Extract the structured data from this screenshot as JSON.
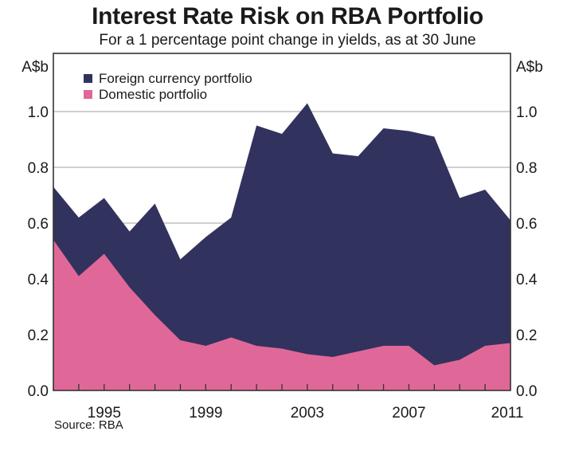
{
  "colors": {
    "foreign": "#32325e",
    "domestic": "#e06899",
    "grid": "#b3b3b3",
    "frame": "#333333"
  },
  "chart_data": {
    "type": "area",
    "stacked": false,
    "title": "Interest Rate Risk on RBA Portfolio",
    "subtitle": "For a 1 percentage point change in yields, as at 30 June",
    "ylabel_left": "A$b",
    "ylabel_right": "A$b",
    "xlabel": "",
    "x": [
      1993,
      1994,
      1995,
      1996,
      1997,
      1998,
      1999,
      2000,
      2001,
      2002,
      2003,
      2004,
      2005,
      2006,
      2007,
      2008,
      2009,
      2010,
      2011
    ],
    "xlim": [
      1993,
      2011
    ],
    "ylim": [
      0,
      1.0
    ],
    "x_tick_labels": [
      "1995",
      "1999",
      "2003",
      "2007",
      "2011"
    ],
    "x_tick_label_years": [
      1995,
      1999,
      2003,
      2007,
      2011
    ],
    "y_ticks": [
      0.0,
      0.2,
      0.4,
      0.6,
      0.8,
      1.0
    ],
    "y_tick_labels": [
      "0.0",
      "0.2",
      "0.4",
      "0.6",
      "0.8",
      "1.0"
    ],
    "grid": true,
    "legend_position": "top-left",
    "series": [
      {
        "name": "Foreign currency portfolio",
        "color": "#32325e",
        "values": [
          0.73,
          0.62,
          0.69,
          0.57,
          0.67,
          0.47,
          0.55,
          0.62,
          0.95,
          0.92,
          1.03,
          0.85,
          0.84,
          0.94,
          0.93,
          0.91,
          0.69,
          0.72,
          0.61
        ]
      },
      {
        "name": "Domestic portfolio",
        "color": "#e06899",
        "values": [
          0.54,
          0.41,
          0.49,
          0.37,
          0.27,
          0.18,
          0.16,
          0.19,
          0.16,
          0.15,
          0.13,
          0.12,
          0.14,
          0.16,
          0.16,
          0.09,
          0.11,
          0.16,
          0.17
        ]
      }
    ],
    "source": "Source: RBA"
  }
}
